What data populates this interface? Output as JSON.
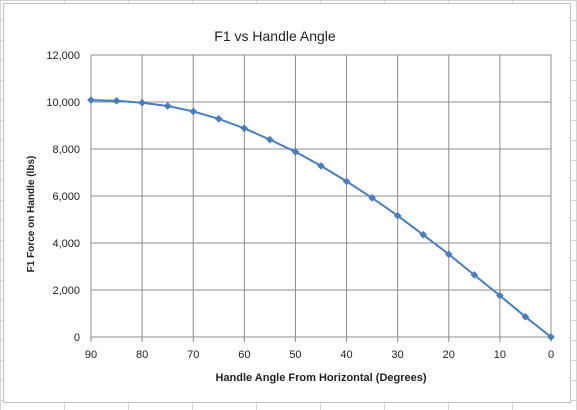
{
  "chart_data": {
    "type": "line",
    "title": "F1 vs Handle Angle",
    "xlabel": "Handle Angle From Horizontal (Degrees)",
    "ylabel": "F1 Force on Handle (lbs)",
    "xlim": [
      90,
      0
    ],
    "ylim": [
      0,
      12000
    ],
    "x_ticks": [
      "90",
      "80",
      "70",
      "60",
      "50",
      "40",
      "30",
      "20",
      "10",
      "0"
    ],
    "y_ticks": [
      "0",
      "2,000",
      "4,000",
      "6,000",
      "8,000",
      "10,000",
      "12,000"
    ],
    "grid": true,
    "color": "#4a7ebb",
    "series": [
      {
        "x": [
          90,
          85,
          80,
          75,
          70,
          65,
          60,
          55,
          50,
          45,
          40,
          35,
          30,
          25,
          20,
          15,
          10,
          5,
          0
        ],
        "values": [
          10080,
          10050,
          9970,
          9830,
          9600,
          9280,
          8880,
          8400,
          7880,
          7280,
          6620,
          5920,
          5160,
          4350,
          3520,
          2640,
          1760,
          860,
          0
        ]
      }
    ]
  }
}
